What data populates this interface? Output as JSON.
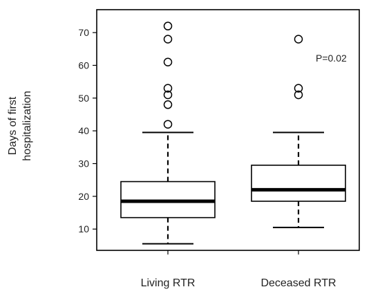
{
  "chart_data": {
    "type": "box",
    "title": "",
    "ylabel": [
      "Days of first",
      "hospitalization"
    ],
    "ylim": [
      3.5,
      77
    ],
    "yticks": [
      10,
      20,
      30,
      40,
      50,
      60,
      70
    ],
    "categories": [
      "Living RTR",
      "Deceased RTR"
    ],
    "boxes": [
      {
        "whisker_low": 5.5,
        "q1": 13.5,
        "median": 18.5,
        "q3": 24.5,
        "whisker_high": 39.5,
        "outliers": [
          42,
          48,
          51,
          53,
          61,
          68,
          72
        ]
      },
      {
        "whisker_low": 10.5,
        "q1": 18.5,
        "median": 22,
        "q3": 29.5,
        "whisker_high": 39.5,
        "outliers": [
          51,
          53,
          68
        ]
      }
    ],
    "annotations": [
      {
        "text": "P=0.02"
      }
    ],
    "grid": false,
    "legend": "none"
  }
}
